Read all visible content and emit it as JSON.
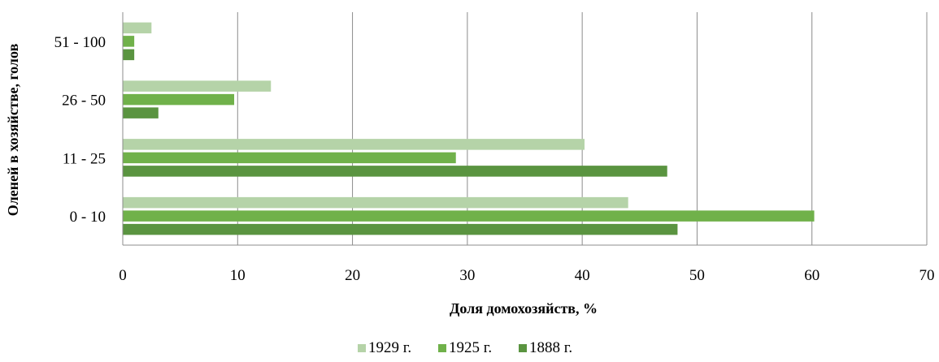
{
  "chart_data": {
    "type": "bar",
    "orientation": "horizontal",
    "categories": [
      "0 - 10",
      "11 - 25",
      "26 - 50",
      "51 - 100"
    ],
    "series": [
      {
        "name": "1929 г.",
        "color": "#b5d3a8",
        "values": [
          44,
          40.2,
          12.9,
          2.5
        ]
      },
      {
        "name": "1925 г.",
        "color": "#70b14a",
        "values": [
          60.2,
          29,
          9.7,
          1
        ]
      },
      {
        "name": "1888 г.",
        "color": "#5a9440",
        "values": [
          48.3,
          47.4,
          3.1,
          1
        ]
      }
    ],
    "xlabel": "Доля домохозяйств, %",
    "ylabel": "Оленей в  хозяйстве, голов",
    "xlim": [
      0,
      70
    ],
    "xticks": [
      0,
      10,
      20,
      30,
      40,
      50,
      60,
      70
    ],
    "grid": "vertical",
    "legend_position": "bottom"
  }
}
